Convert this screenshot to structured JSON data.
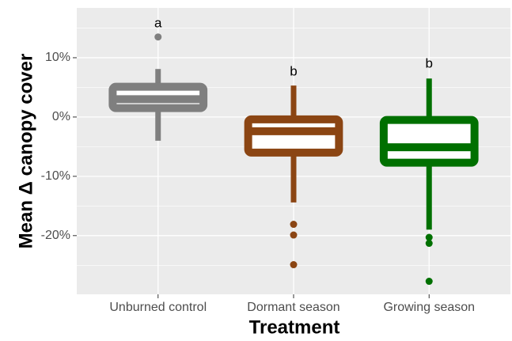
{
  "chart_data": {
    "type": "boxplot",
    "xlabel": "Treatment",
    "ylabel": "Mean Δ canopy cover",
    "categories": [
      "Unburned control",
      "Dormant season",
      "Growing season"
    ],
    "boxes": [
      {
        "low": -4.0,
        "q1": 1.5,
        "median": 3.0,
        "q3": 5.1,
        "high": 8.1,
        "outliers": [
          13.5
        ],
        "color": "#7f7f7f",
        "letter": "a",
        "letter_y": 15.7
      },
      {
        "low": -14.4,
        "q1": -6.0,
        "median": -2.4,
        "q3": -0.4,
        "high": 5.3,
        "outliers": [
          -18.1,
          -19.9,
          -24.9
        ],
        "color": "#8b4513",
        "letter": "b",
        "letter_y": 7.6
      },
      {
        "low": -19.0,
        "q1": -7.7,
        "median": -5.1,
        "q3": -0.5,
        "high": 6.5,
        "outliers": [
          -20.3,
          -21.3,
          -27.7
        ],
        "color": "#007000",
        "letter": "b",
        "letter_y": 8.9
      }
    ],
    "ylim": [
      -29.9,
      18.4
    ],
    "yticks": [
      {
        "value": 10,
        "label": "10%"
      },
      {
        "value": 0,
        "label": "0%"
      },
      {
        "value": -10,
        "label": "-10%"
      },
      {
        "value": -20,
        "label": "-20%"
      }
    ],
    "yminor": [
      15,
      5,
      -5,
      -15,
      -25
    ],
    "grid": true
  }
}
